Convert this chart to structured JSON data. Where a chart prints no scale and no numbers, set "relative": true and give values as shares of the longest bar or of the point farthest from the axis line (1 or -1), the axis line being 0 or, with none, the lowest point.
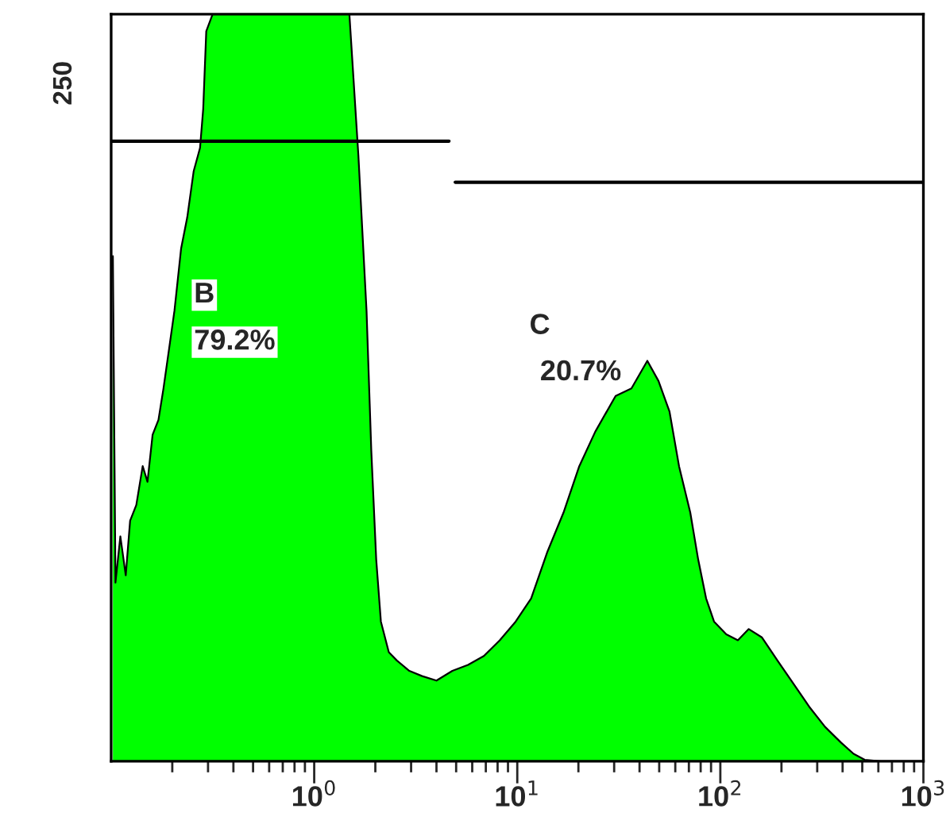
{
  "chart_data": {
    "type": "area",
    "relative": true,
    "log": "x",
    "xlim": [
      0.1,
      1000
    ],
    "xticks": [
      {
        "value": 1,
        "label": "10$^{0}$"
      },
      {
        "value": 10,
        "label": "10$^{1}$"
      },
      {
        "value": 100,
        "label": "10$^{2}$"
      },
      {
        "value": 1000,
        "label": "10$^{3}$"
      }
    ],
    "grid": false,
    "legend": false,
    "series": [
      {
        "color": "#00ff00",
        "x": [
          0.102,
          0.105,
          0.111,
          0.118,
          0.124,
          0.133,
          0.143,
          0.151,
          0.16,
          0.171,
          0.181,
          0.195,
          0.205,
          0.221,
          0.237,
          0.255,
          0.274,
          0.284,
          0.294,
          0.316,
          1.49,
          1.65,
          1.81,
          1.91,
          2.02,
          2.13,
          2.33,
          2.55,
          2.94,
          3.4,
          4.0,
          4.79,
          5.72,
          6.85,
          8.2,
          9.82,
          11.7,
          14.1,
          16.9,
          20.2,
          24.2,
          30.5,
          36.5,
          43.7,
          49.6,
          56.2,
          62.6,
          71.1,
          77.8,
          85.1,
          93.1,
          107,
          122,
          138,
          160,
          191,
          229,
          274,
          328,
          393,
          453,
          514,
          615,
          1000
        ],
        "values": [
          0.676,
          0.239,
          0.301,
          0.249,
          0.322,
          0.343,
          0.395,
          0.374,
          0.437,
          0.457,
          0.499,
          0.561,
          0.603,
          0.686,
          0.728,
          0.79,
          0.821,
          0.873,
          0.977,
          1.0,
          1.0,
          0.811,
          0.603,
          0.416,
          0.27,
          0.187,
          0.146,
          0.135,
          0.121,
          0.114,
          0.108,
          0.121,
          0.129,
          0.141,
          0.162,
          0.187,
          0.218,
          0.281,
          0.333,
          0.395,
          0.441,
          0.489,
          0.499,
          0.536,
          0.509,
          0.468,
          0.395,
          0.333,
          0.27,
          0.218,
          0.187,
          0.17,
          0.162,
          0.177,
          0.166,
          0.135,
          0.104,
          0.073,
          0.046,
          0.025,
          0.01,
          0.002,
          0.0,
          0.0
        ]
      },
      {
        "type": "line",
        "color": "#000000",
        "x": [
          0.1,
          4.61
        ],
        "values": [
          0.83,
          0.83
        ]
      },
      {
        "type": "line",
        "color": "#000000",
        "x": [
          4.95,
          1000
        ],
        "values": [
          0.775,
          0.775
        ]
      }
    ],
    "annotations": [
      "250",
      "B",
      "79.2%",
      "C",
      "20.7%"
    ]
  }
}
